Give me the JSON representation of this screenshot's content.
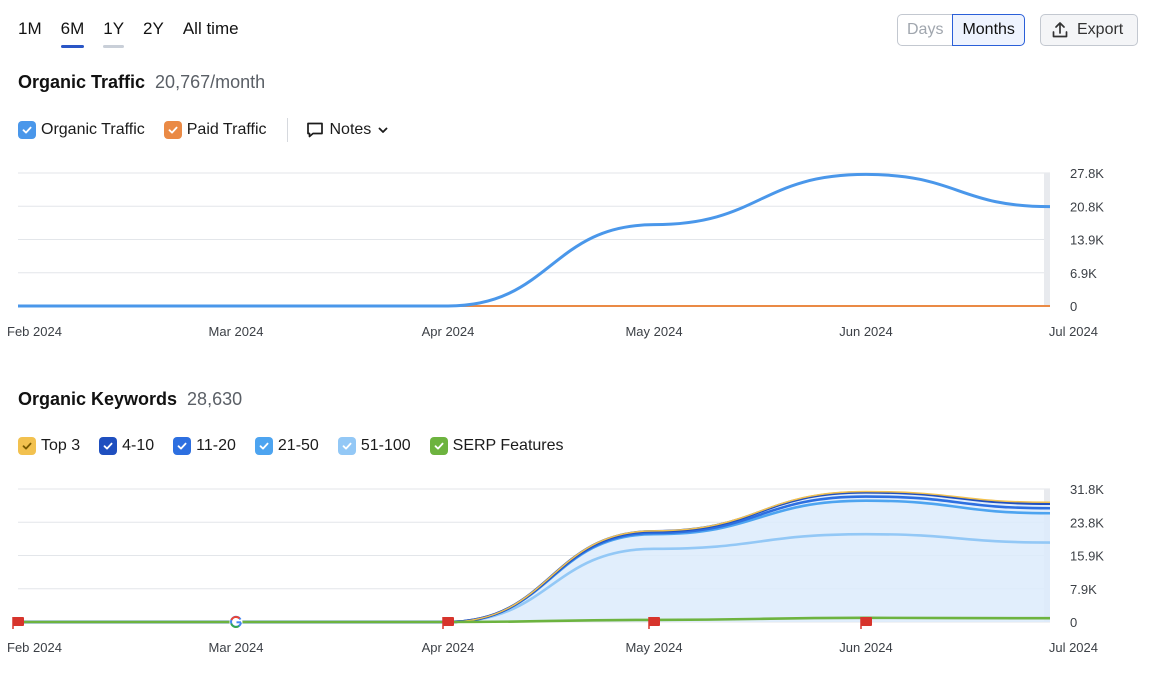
{
  "period_tabs": [
    {
      "label": "1M",
      "state": "normal"
    },
    {
      "label": "6M",
      "state": "active"
    },
    {
      "label": "1Y",
      "state": "hover"
    },
    {
      "label": "2Y",
      "state": "normal"
    },
    {
      "label": "All time",
      "state": "normal"
    }
  ],
  "granularity": {
    "days_label": "Days",
    "months_label": "Months",
    "selected": "Months"
  },
  "export": {
    "label": "Export",
    "icon": "upload-icon"
  },
  "colors": {
    "organic": "#4a97ea",
    "paid": "#ea8a45",
    "top3": "#f2c14f",
    "k4_10": "#1f4fbf",
    "k11_20": "#2d6fe0",
    "k21_50": "#4da4f0",
    "k51_100": "#93c8f6",
    "serp": "#6db33f",
    "flag": "#d7342c"
  },
  "traffic": {
    "title": "Organic Traffic",
    "value": "20,767/month",
    "legend": {
      "organic_label": "Organic Traffic",
      "paid_label": "Paid Traffic",
      "notes_label": "Notes"
    }
  },
  "keywords": {
    "title": "Organic Keywords",
    "value": "28,630",
    "legend": [
      {
        "label": "Top 3",
        "color": "#f2c14f",
        "checkmark": "#7a5a00"
      },
      {
        "label": "4-10",
        "color": "#1f4fbf",
        "checkmark": "#ffffff"
      },
      {
        "label": "11-20",
        "color": "#2d6fe0",
        "checkmark": "#ffffff"
      },
      {
        "label": "21-50",
        "color": "#4da4f0",
        "checkmark": "#ffffff"
      },
      {
        "label": "51-100",
        "color": "#93c8f6",
        "checkmark": "#ffffff"
      },
      {
        "label": "SERP Features",
        "color": "#6db33f",
        "checkmark": "#ffffff"
      }
    ]
  },
  "chart_data": [
    {
      "type": "line",
      "title": "Organic Traffic",
      "x_labels": [
        "Feb 2024",
        "Mar 2024",
        "Apr 2024",
        "May 2024",
        "Jun 2024",
        "Jul 2024"
      ],
      "y_ticks": [
        "27.8K",
        "20.8K",
        "13.9K",
        "6.9K",
        "0"
      ],
      "ylim": [
        0,
        27800
      ],
      "grid": true,
      "series": [
        {
          "name": "Organic Traffic",
          "color": "#4a97ea",
          "points": [
            [
              "Feb 2024",
              0
            ],
            [
              "Mar 2024",
              0
            ],
            [
              "Apr 2024",
              0
            ],
            [
              "May 2024",
              17000
            ],
            [
              "Jun 2024",
              27500
            ],
            [
              "Jul 2024",
              20767
            ]
          ]
        },
        {
          "name": "Paid Traffic",
          "color": "#ea8a45",
          "points": [
            [
              "Feb 2024",
              0
            ],
            [
              "Mar 2024",
              0
            ],
            [
              "Apr 2024",
              0
            ],
            [
              "May 2024",
              0
            ],
            [
              "Jun 2024",
              0
            ],
            [
              "Jul 2024",
              0
            ]
          ]
        }
      ]
    },
    {
      "type": "area",
      "title": "Organic Keywords",
      "x_labels": [
        "Feb 2024",
        "Mar 2024",
        "Apr 2024",
        "May 2024",
        "Jun 2024",
        "Jul 2024"
      ],
      "y_ticks": [
        "31.8K",
        "23.8K",
        "15.9K",
        "7.9K",
        "0"
      ],
      "ylim": [
        0,
        31800
      ],
      "grid": true,
      "series": [
        {
          "name": "SERP Features",
          "color": "#6db33f",
          "points": [
            [
              "Feb 2024",
              0
            ],
            [
              "Mar 2024",
              0
            ],
            [
              "Apr 2024",
              0
            ],
            [
              "May 2024",
              500
            ],
            [
              "Jun 2024",
              1000
            ],
            [
              "Jul 2024",
              900
            ]
          ]
        },
        {
          "name": "51-100",
          "color": "#93c8f6",
          "points": [
            [
              "Feb 2024",
              0
            ],
            [
              "Mar 2024",
              0
            ],
            [
              "Apr 2024",
              0
            ],
            [
              "May 2024",
              17500
            ],
            [
              "Jun 2024",
              21000
            ],
            [
              "Jul 2024",
              19000
            ]
          ]
        },
        {
          "name": "21-50",
          "color": "#4da4f0",
          "points": [
            [
              "Feb 2024",
              0
            ],
            [
              "Mar 2024",
              0
            ],
            [
              "Apr 2024",
              0
            ],
            [
              "May 2024",
              21000
            ],
            [
              "Jun 2024",
              29000
            ],
            [
              "Jul 2024",
              26000
            ]
          ]
        },
        {
          "name": "11-20",
          "color": "#2d6fe0",
          "points": [
            [
              "Feb 2024",
              0
            ],
            [
              "Mar 2024",
              0
            ],
            [
              "Apr 2024",
              0
            ],
            [
              "May 2024",
              21300
            ],
            [
              "Jun 2024",
              30000
            ],
            [
              "Jul 2024",
              27200
            ]
          ]
        },
        {
          "name": "4-10",
          "color": "#1f4fbf",
          "points": [
            [
              "Feb 2024",
              0
            ],
            [
              "Mar 2024",
              0
            ],
            [
              "Apr 2024",
              0
            ],
            [
              "May 2024",
              21700
            ],
            [
              "Jun 2024",
              31000
            ],
            [
              "Jul 2024",
              28300
            ]
          ]
        },
        {
          "name": "Top 3",
          "color": "#f2c14f",
          "points": [
            [
              "Feb 2024",
              0
            ],
            [
              "Mar 2024",
              0
            ],
            [
              "Apr 2024",
              0
            ],
            [
              "May 2024",
              21800
            ],
            [
              "Jun 2024",
              31200
            ],
            [
              "Jul 2024",
              28630
            ]
          ]
        }
      ],
      "markers": [
        {
          "x": "Feb 2024",
          "kind": "flag"
        },
        {
          "x": "Mar 2024",
          "kind": "google"
        },
        {
          "x": "Apr 2024",
          "kind": "flag"
        },
        {
          "x": "May 2024",
          "kind": "flag"
        },
        {
          "x": "Jun 2024",
          "kind": "flag"
        }
      ]
    }
  ]
}
